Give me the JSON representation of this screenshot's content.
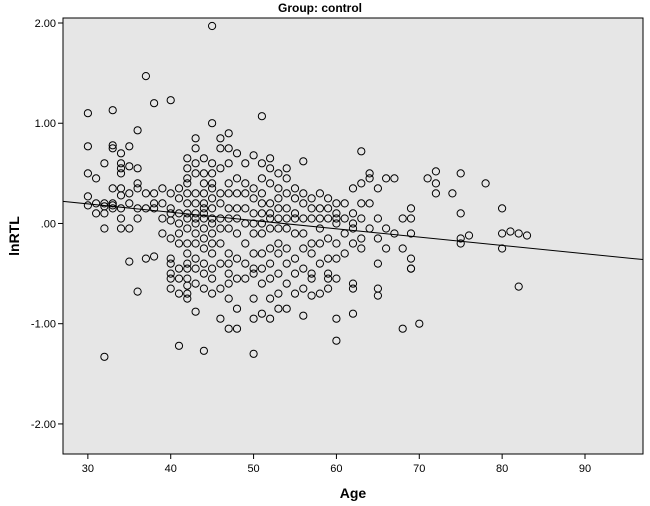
{
  "chart_data": {
    "type": "scatter",
    "title": "Group: control",
    "xlabel": "Age",
    "ylabel": "lnRTL",
    "xlim": [
      27,
      97
    ],
    "ylim": [
      -2.3,
      2.05
    ],
    "xticks": [
      "30",
      "40",
      "50",
      "60",
      "70",
      "80",
      "90"
    ],
    "xtick_values": [
      30,
      40,
      50,
      60,
      70,
      80,
      90
    ],
    "yticks": [
      "2.00",
      "1.00",
      ".00",
      "-1.00",
      "-2.00"
    ],
    "ytick_values": [
      2,
      1,
      0,
      -1,
      -2
    ],
    "grid": false,
    "background_color": "#e6e6e6",
    "marker_color": "#000000",
    "fit_line": {
      "type": "linear",
      "x": [
        27,
        97
      ],
      "y": [
        0.22,
        -0.36
      ]
    },
    "points": [
      [
        30,
        1.1
      ],
      [
        30,
        0.77
      ],
      [
        30,
        0.5
      ],
      [
        30,
        0.27
      ],
      [
        30,
        0.18
      ],
      [
        31,
        0.45
      ],
      [
        31,
        0.2
      ],
      [
        31,
        0.1
      ],
      [
        32,
        0.6
      ],
      [
        32,
        0.2
      ],
      [
        32,
        0.1
      ],
      [
        32,
        0.17
      ],
      [
        32,
        -0.05
      ],
      [
        32,
        -1.33
      ],
      [
        33,
        1.13
      ],
      [
        33,
        0.78
      ],
      [
        33,
        0.75
      ],
      [
        33,
        0.35
      ],
      [
        33,
        0.2
      ],
      [
        33,
        0.18
      ],
      [
        33,
        0.15
      ],
      [
        34,
        0.7
      ],
      [
        34,
        0.6
      ],
      [
        34,
        0.55
      ],
      [
        34,
        0.5
      ],
      [
        34,
        0.35
      ],
      [
        34,
        0.28
      ],
      [
        34,
        0.15
      ],
      [
        34,
        0.05
      ],
      [
        34,
        -0.05
      ],
      [
        35,
        0.77
      ],
      [
        35,
        0.57
      ],
      [
        35,
        0.3
      ],
      [
        35,
        0.2
      ],
      [
        35,
        -0.05
      ],
      [
        35,
        -0.38
      ],
      [
        36,
        0.93
      ],
      [
        36,
        0.55
      ],
      [
        36,
        0.4
      ],
      [
        36,
        0.35
      ],
      [
        36,
        0.15
      ],
      [
        36,
        0.05
      ],
      [
        36,
        -0.68
      ],
      [
        37,
        1.47
      ],
      [
        37,
        0.3
      ],
      [
        37,
        0.15
      ],
      [
        37,
        -0.35
      ],
      [
        38,
        1.2
      ],
      [
        38,
        0.3
      ],
      [
        38,
        0.2
      ],
      [
        38,
        0.15
      ],
      [
        38,
        -0.33
      ],
      [
        39,
        0.35
      ],
      [
        39,
        0.2
      ],
      [
        39,
        0.05
      ],
      [
        39,
        -0.1
      ],
      [
        40,
        1.23
      ],
      [
        40,
        0.3
      ],
      [
        40,
        0.15
      ],
      [
        40,
        0.1
      ],
      [
        40,
        0.03
      ],
      [
        40,
        -0.15
      ],
      [
        40,
        -0.35
      ],
      [
        40,
        -0.4
      ],
      [
        40,
        -0.5
      ],
      [
        40,
        -0.55
      ],
      [
        40,
        -0.65
      ],
      [
        41,
        0.35
      ],
      [
        41,
        0.25
      ],
      [
        41,
        0.1
      ],
      [
        41,
        0.0
      ],
      [
        41,
        -0.1
      ],
      [
        41,
        -0.2
      ],
      [
        41,
        -0.45
      ],
      [
        41,
        -0.55
      ],
      [
        41,
        -0.7
      ],
      [
        41,
        -1.22
      ],
      [
        42,
        0.65
      ],
      [
        42,
        0.55
      ],
      [
        42,
        0.45
      ],
      [
        42,
        0.4
      ],
      [
        42,
        0.3
      ],
      [
        42,
        0.2
      ],
      [
        42,
        0.1
      ],
      [
        42,
        0.05
      ],
      [
        42,
        -0.05
      ],
      [
        42,
        -0.2
      ],
      [
        42,
        -0.3
      ],
      [
        42,
        -0.4
      ],
      [
        42,
        -0.45
      ],
      [
        42,
        -0.55
      ],
      [
        42,
        -0.62
      ],
      [
        42,
        -0.7
      ],
      [
        42,
        -0.75
      ],
      [
        43,
        0.85
      ],
      [
        43,
        0.75
      ],
      [
        43,
        0.6
      ],
      [
        43,
        0.5
      ],
      [
        43,
        0.3
      ],
      [
        43,
        0.2
      ],
      [
        43,
        0.1
      ],
      [
        43,
        0.05
      ],
      [
        43,
        0.0
      ],
      [
        43,
        -0.1
      ],
      [
        43,
        -0.2
      ],
      [
        43,
        -0.35
      ],
      [
        43,
        -0.45
      ],
      [
        43,
        -0.6
      ],
      [
        43,
        -0.88
      ],
      [
        44,
        0.65
      ],
      [
        44,
        0.5
      ],
      [
        44,
        0.4
      ],
      [
        44,
        0.3
      ],
      [
        44,
        0.2
      ],
      [
        44,
        0.15
      ],
      [
        44,
        0.1
      ],
      [
        44,
        0.05
      ],
      [
        44,
        -0.05
      ],
      [
        44,
        -0.15
      ],
      [
        44,
        -0.25
      ],
      [
        44,
        -0.4
      ],
      [
        44,
        -0.5
      ],
      [
        44,
        -0.65
      ],
      [
        44,
        -1.27
      ],
      [
        45,
        1.97
      ],
      [
        45,
        1.0
      ],
      [
        45,
        0.6
      ],
      [
        45,
        0.5
      ],
      [
        45,
        0.4
      ],
      [
        45,
        0.35
      ],
      [
        45,
        0.25
      ],
      [
        45,
        0.15
      ],
      [
        45,
        0.05
      ],
      [
        45,
        0.0
      ],
      [
        45,
        -0.1
      ],
      [
        45,
        -0.2
      ],
      [
        45,
        -0.3
      ],
      [
        45,
        -0.45
      ],
      [
        45,
        -0.55
      ],
      [
        45,
        -0.7
      ],
      [
        46,
        0.85
      ],
      [
        46,
        0.75
      ],
      [
        46,
        0.55
      ],
      [
        46,
        0.3
      ],
      [
        46,
        0.2
      ],
      [
        46,
        0.05
      ],
      [
        46,
        -0.05
      ],
      [
        46,
        -0.2
      ],
      [
        46,
        -0.4
      ],
      [
        46,
        -0.65
      ],
      [
        46,
        -0.95
      ],
      [
        47,
        0.9
      ],
      [
        47,
        0.75
      ],
      [
        47,
        0.6
      ],
      [
        47,
        0.4
      ],
      [
        47,
        0.3
      ],
      [
        47,
        0.15
      ],
      [
        47,
        0.05
      ],
      [
        47,
        -0.05
      ],
      [
        47,
        -0.3
      ],
      [
        47,
        -0.4
      ],
      [
        47,
        -0.5
      ],
      [
        47,
        -0.6
      ],
      [
        47,
        -0.75
      ],
      [
        47,
        -1.05
      ],
      [
        48,
        0.7
      ],
      [
        48,
        0.45
      ],
      [
        48,
        0.3
      ],
      [
        48,
        0.15
      ],
      [
        48,
        0.05
      ],
      [
        48,
        -0.1
      ],
      [
        48,
        -0.35
      ],
      [
        48,
        -0.55
      ],
      [
        48,
        -0.85
      ],
      [
        48,
        -1.05
      ],
      [
        49,
        0.6
      ],
      [
        49,
        0.4
      ],
      [
        49,
        0.3
      ],
      [
        49,
        0.15
      ],
      [
        49,
        0.0
      ],
      [
        49,
        -0.2
      ],
      [
        49,
        -0.4
      ],
      [
        49,
        -0.55
      ],
      [
        50,
        0.68
      ],
      [
        50,
        0.35
      ],
      [
        50,
        0.25
      ],
      [
        50,
        0.1
      ],
      [
        50,
        0.0
      ],
      [
        50,
        -0.1
      ],
      [
        50,
        -0.3
      ],
      [
        50,
        -0.45
      ],
      [
        50,
        -0.5
      ],
      [
        50,
        -0.75
      ],
      [
        50,
        -0.95
      ],
      [
        50,
        -1.3
      ],
      [
        51,
        1.07
      ],
      [
        51,
        0.6
      ],
      [
        51,
        0.45
      ],
      [
        51,
        0.3
      ],
      [
        51,
        0.2
      ],
      [
        51,
        0.1
      ],
      [
        51,
        0.0
      ],
      [
        51,
        -0.1
      ],
      [
        51,
        -0.3
      ],
      [
        51,
        -0.45
      ],
      [
        51,
        -0.6
      ],
      [
        51,
        -0.9
      ],
      [
        52,
        0.65
      ],
      [
        52,
        0.55
      ],
      [
        52,
        0.4
      ],
      [
        52,
        0.2
      ],
      [
        52,
        0.1
      ],
      [
        52,
        0.05
      ],
      [
        52,
        -0.05
      ],
      [
        52,
        -0.25
      ],
      [
        52,
        -0.4
      ],
      [
        52,
        -0.55
      ],
      [
        52,
        -0.75
      ],
      [
        52,
        -0.95
      ],
      [
        53,
        0.5
      ],
      [
        53,
        0.35
      ],
      [
        53,
        0.25
      ],
      [
        53,
        0.15
      ],
      [
        53,
        0.05
      ],
      [
        53,
        -0.05
      ],
      [
        53,
        -0.2
      ],
      [
        53,
        -0.3
      ],
      [
        53,
        -0.5
      ],
      [
        53,
        -0.7
      ],
      [
        53,
        -0.85
      ],
      [
        54,
        0.55
      ],
      [
        54,
        0.45
      ],
      [
        54,
        0.3
      ],
      [
        54,
        0.15
      ],
      [
        54,
        0.05
      ],
      [
        54,
        -0.05
      ],
      [
        54,
        -0.25
      ],
      [
        54,
        -0.4
      ],
      [
        54,
        -0.6
      ],
      [
        54,
        -0.85
      ],
      [
        55,
        0.35
      ],
      [
        55,
        0.25
      ],
      [
        55,
        0.1
      ],
      [
        55,
        0.05
      ],
      [
        55,
        -0.1
      ],
      [
        55,
        -0.35
      ],
      [
        55,
        -0.5
      ],
      [
        55,
        -0.7
      ],
      [
        56,
        0.62
      ],
      [
        56,
        0.3
      ],
      [
        56,
        0.2
      ],
      [
        56,
        0.05
      ],
      [
        56,
        -0.1
      ],
      [
        56,
        -0.25
      ],
      [
        56,
        -0.45
      ],
      [
        56,
        -0.65
      ],
      [
        56,
        -0.92
      ],
      [
        57,
        0.25
      ],
      [
        57,
        0.15
      ],
      [
        57,
        0.05
      ],
      [
        57,
        -0.2
      ],
      [
        57,
        -0.3
      ],
      [
        57,
        -0.5
      ],
      [
        57,
        -0.55
      ],
      [
        57,
        -0.72
      ],
      [
        58,
        0.3
      ],
      [
        58,
        0.15
      ],
      [
        58,
        0.05
      ],
      [
        58,
        -0.05
      ],
      [
        58,
        -0.2
      ],
      [
        58,
        -0.4
      ],
      [
        58,
        -0.7
      ],
      [
        59,
        0.25
      ],
      [
        59,
        0.15
      ],
      [
        59,
        0.05
      ],
      [
        59,
        -0.15
      ],
      [
        59,
        -0.35
      ],
      [
        59,
        -0.5
      ],
      [
        59,
        -0.55
      ],
      [
        59,
        -0.65
      ],
      [
        60,
        0.2
      ],
      [
        60,
        0.1
      ],
      [
        60,
        0.05
      ],
      [
        60,
        0.0
      ],
      [
        60,
        -0.2
      ],
      [
        60,
        -0.35
      ],
      [
        60,
        -0.55
      ],
      [
        60,
        -0.95
      ],
      [
        60,
        -1.17
      ],
      [
        61,
        0.2
      ],
      [
        61,
        0.05
      ],
      [
        61,
        -0.1
      ],
      [
        61,
        -0.3
      ],
      [
        62,
        0.35
      ],
      [
        62,
        0.1
      ],
      [
        62,
        0.0
      ],
      [
        62,
        -0.05
      ],
      [
        62,
        -0.2
      ],
      [
        62,
        -0.6
      ],
      [
        62,
        -0.65
      ],
      [
        62,
        -0.9
      ],
      [
        63,
        0.72
      ],
      [
        63,
        0.4
      ],
      [
        63,
        0.2
      ],
      [
        63,
        0.05
      ],
      [
        63,
        -0.15
      ],
      [
        63,
        -0.25
      ],
      [
        64,
        0.5
      ],
      [
        64,
        0.45
      ],
      [
        64,
        0.2
      ],
      [
        64,
        -0.05
      ],
      [
        65,
        0.35
      ],
      [
        65,
        0.05
      ],
      [
        65,
        -0.15
      ],
      [
        65,
        -0.4
      ],
      [
        65,
        -0.65
      ],
      [
        65,
        -0.72
      ],
      [
        66,
        0.45
      ],
      [
        66,
        -0.05
      ],
      [
        66,
        -0.25
      ],
      [
        67,
        0.45
      ],
      [
        67,
        -0.1
      ],
      [
        68,
        0.05
      ],
      [
        68,
        -0.25
      ],
      [
        68,
        -1.05
      ],
      [
        69,
        0.15
      ],
      [
        69,
        0.05
      ],
      [
        69,
        -0.1
      ],
      [
        69,
        -0.35
      ],
      [
        69,
        -0.45
      ],
      [
        69,
        -0.45
      ],
      [
        70,
        -1.0
      ],
      [
        71,
        0.45
      ],
      [
        72,
        0.52
      ],
      [
        72,
        0.4
      ],
      [
        72,
        0.3
      ],
      [
        74,
        0.3
      ],
      [
        75,
        0.5
      ],
      [
        75,
        0.1
      ],
      [
        75,
        -0.15
      ],
      [
        75,
        -0.2
      ],
      [
        76,
        -0.12
      ],
      [
        78,
        0.4
      ],
      [
        80,
        0.15
      ],
      [
        80,
        -0.1
      ],
      [
        80,
        -0.25
      ],
      [
        81,
        -0.08
      ],
      [
        82,
        -0.1
      ],
      [
        82,
        -0.63
      ],
      [
        83,
        -0.12
      ]
    ]
  }
}
